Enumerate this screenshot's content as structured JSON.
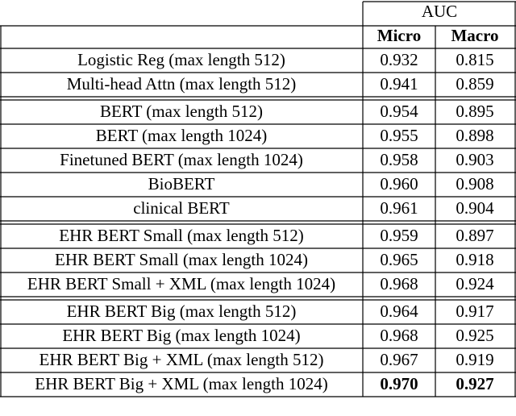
{
  "table": {
    "header": {
      "auc": "AUC",
      "micro": "Micro",
      "macro": "Macro"
    },
    "groups": [
      [
        [
          "Logistic Reg (max length 512)",
          "0.932",
          "0.815"
        ],
        [
          "Multi-head Attn (max length 512)",
          "0.941",
          "0.859"
        ]
      ],
      [
        [
          "BERT (max length 512)",
          "0.954",
          "0.895"
        ],
        [
          "BERT (max length 1024)",
          "0.955",
          "0.898"
        ],
        [
          "Finetuned BERT (max length 1024)",
          "0.958",
          "0.903"
        ],
        [
          "BioBERT",
          "0.960",
          "0.908"
        ],
        [
          "clinical BERT",
          "0.961",
          "0.904"
        ]
      ],
      [
        [
          "EHR BERT Small (max length 512)",
          "0.959",
          "0.897"
        ],
        [
          "EHR BERT Small (max length 1024)",
          "0.965",
          "0.918"
        ],
        [
          "EHR BERT Small + XML (max length 1024)",
          "0.968",
          "0.924"
        ]
      ],
      [
        [
          "EHR BERT Big (max length 512)",
          "0.964",
          "0.917"
        ],
        [
          "EHR BERT Big (max length 1024)",
          "0.968",
          "0.925"
        ],
        [
          "EHR BERT Big + XML (max length 512)",
          "0.967",
          "0.919"
        ],
        [
          "EHR BERT Big + XML (max length 1024)",
          "0.970",
          "0.927"
        ]
      ]
    ]
  }
}
